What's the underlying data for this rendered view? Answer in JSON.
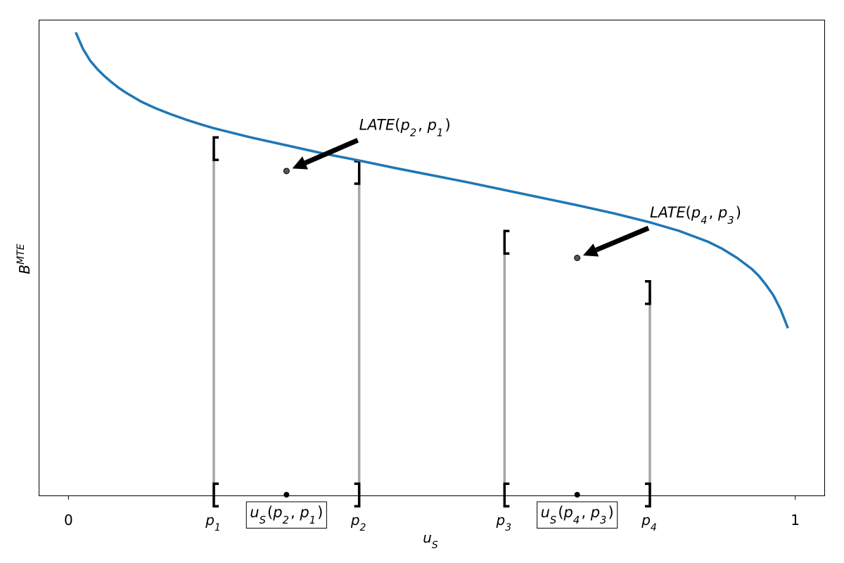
{
  "chart_data": {
    "type": "line",
    "xlim": [
      -0.04,
      1.04
    ],
    "ylim": [
      0.0,
      1.0
    ],
    "xlabel": "u_S",
    "ylabel": "B^MTE",
    "x_ticks": [
      {
        "x": 0.0,
        "label": "0"
      },
      {
        "x": 0.2,
        "label": "p_1"
      },
      {
        "x": 0.4,
        "label": "p_2"
      },
      {
        "x": 0.6,
        "label": "p_3"
      },
      {
        "x": 0.8,
        "label": "p_4"
      },
      {
        "x": 1.0,
        "label": "1"
      }
    ],
    "series": [
      {
        "color": "#1f77b4",
        "x": [
          0.01,
          0.02,
          0.03,
          0.04,
          0.05,
          0.06,
          0.07,
          0.08,
          0.1,
          0.12,
          0.14,
          0.16,
          0.18,
          0.2,
          0.25,
          0.3,
          0.35,
          0.4,
          0.45,
          0.5,
          0.55,
          0.6,
          0.65,
          0.7,
          0.75,
          0.8,
          0.84,
          0.88,
          0.9,
          0.92,
          0.94,
          0.95,
          0.96,
          0.97,
          0.98,
          0.99
        ],
        "y": [
          0.975,
          0.94,
          0.915,
          0.897,
          0.882,
          0.869,
          0.857,
          0.847,
          0.829,
          0.815,
          0.803,
          0.792,
          0.782,
          0.773,
          0.754,
          0.737,
          0.72,
          0.705,
          0.689,
          0.674,
          0.659,
          0.643,
          0.627,
          0.611,
          0.594,
          0.575,
          0.557,
          0.534,
          0.519,
          0.5,
          0.477,
          0.462,
          0.443,
          0.421,
          0.391,
          0.352
        ]
      }
    ],
    "vlines": [
      {
        "x": 0.2,
        "y": 0.73
      },
      {
        "x": 0.4,
        "y": 0.68
      },
      {
        "x": 0.6,
        "y": 0.533
      },
      {
        "x": 0.8,
        "y": 0.427
      }
    ],
    "midpoints": [
      {
        "x": 0.3,
        "y": 0.683,
        "label": "u_S(p_2, p_1)"
      },
      {
        "x": 0.7,
        "y": 0.5,
        "label": "u_S(p_4, p_3)"
      }
    ],
    "annotations": [
      {
        "text": "LATE(p_2, p_1)",
        "target_x": 0.3,
        "target_y": 0.683,
        "text_x": 0.4,
        "text_y": 0.77
      },
      {
        "text": "LATE(p_4, p_3)",
        "target_x": 0.7,
        "target_y": 0.5,
        "text_x": 0.8,
        "text_y": 0.585
      }
    ],
    "grid": false,
    "legend": "none"
  }
}
